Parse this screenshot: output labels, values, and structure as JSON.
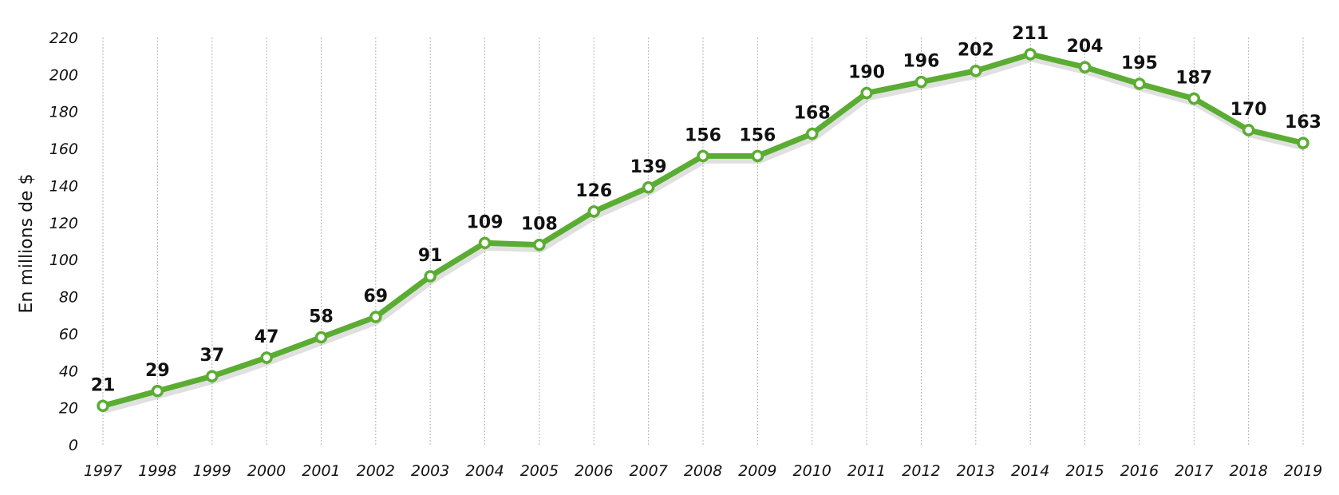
{
  "colors": {
    "line": "#5aad32",
    "marker_fill": "#ffffff"
  },
  "chart_data": {
    "type": "line",
    "title": "",
    "xlabel": "",
    "ylabel": "En millions de $",
    "ylim": [
      0,
      220
    ],
    "yticks": [
      0,
      20,
      40,
      60,
      80,
      100,
      120,
      140,
      160,
      180,
      200,
      220
    ],
    "grid": {
      "vertical": true,
      "horizontal": false
    },
    "x": [
      "1997",
      "1998",
      "1999",
      "2000",
      "2001",
      "2002",
      "2003",
      "2004",
      "2005",
      "2006",
      "2007",
      "2008",
      "2009",
      "2010",
      "2011",
      "2012",
      "2013",
      "2014",
      "2015",
      "2016",
      "2017",
      "2018",
      "2019"
    ],
    "series": [
      {
        "values": [
          21,
          29,
          37,
          47,
          58,
          69,
          91,
          109,
          108,
          126,
          139,
          156,
          156,
          168,
          190,
          196,
          202,
          211,
          204,
          195,
          187,
          170,
          163
        ]
      }
    ]
  }
}
